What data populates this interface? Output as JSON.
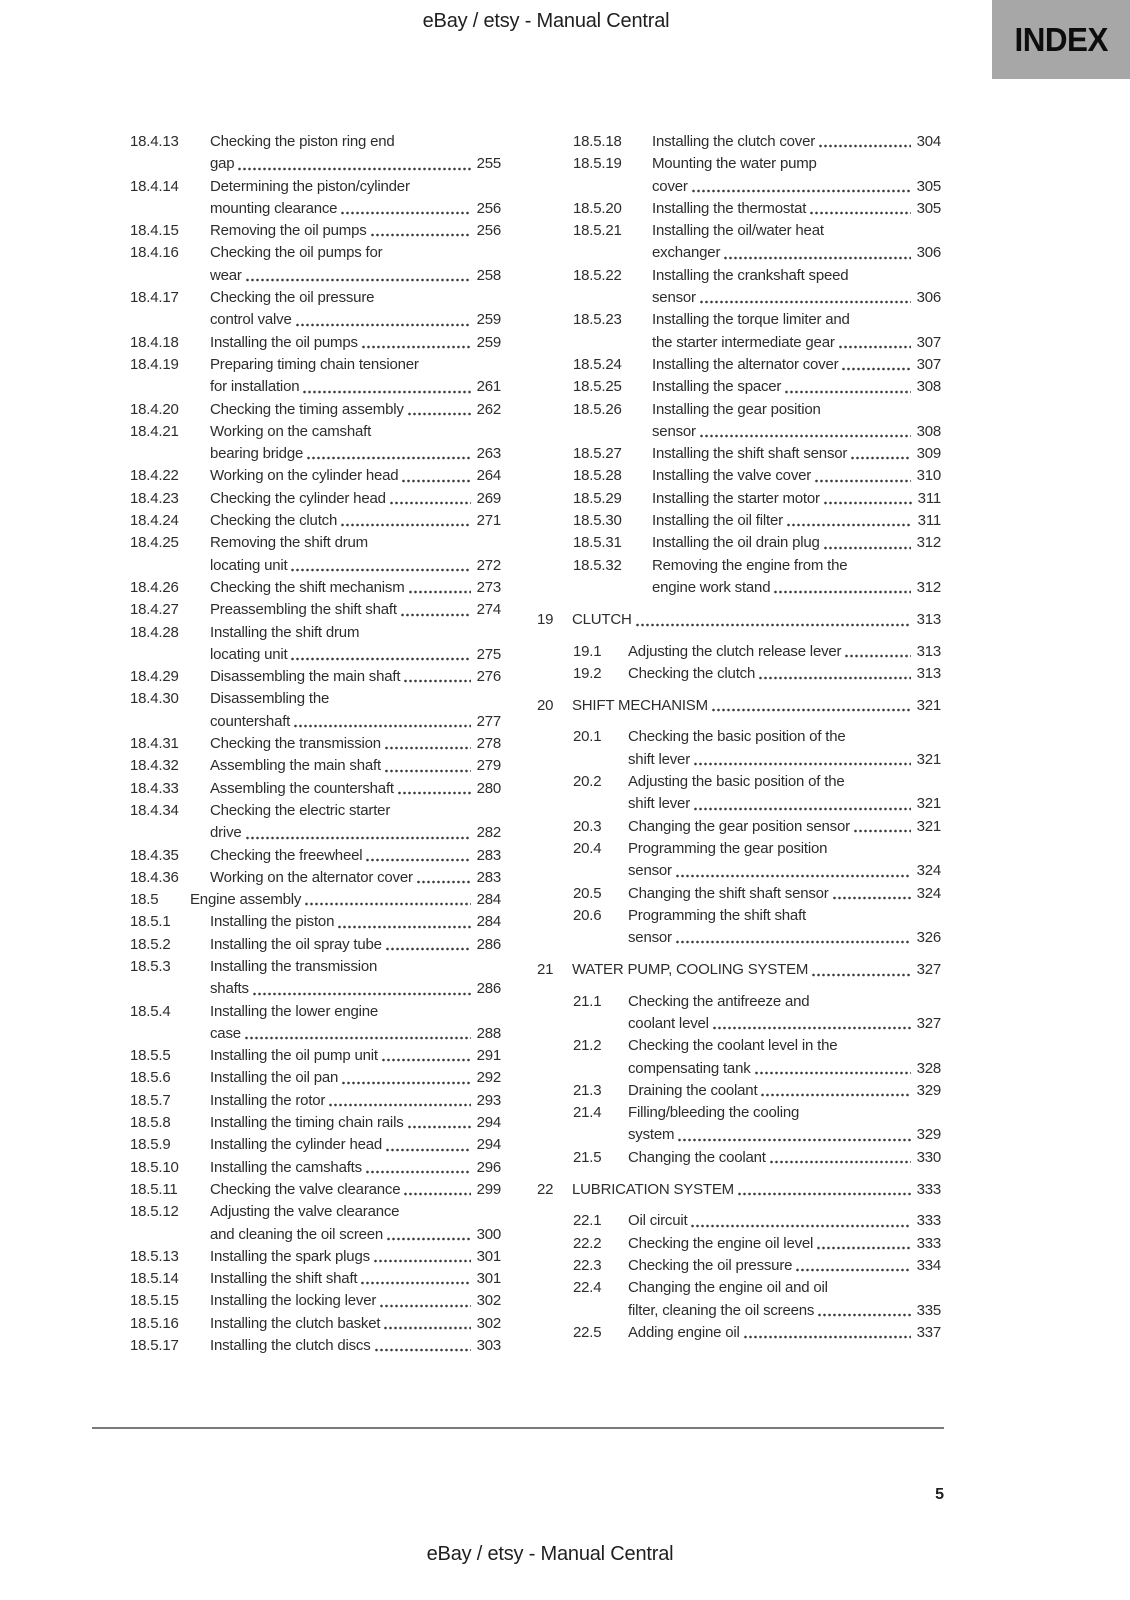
{
  "header": {
    "document_title": "eBay / etsy - Manual Central",
    "index_tab_label": "INDEX"
  },
  "footer": {
    "page_number": "5",
    "document_title": "eBay / etsy - Manual Central"
  },
  "colors": {
    "index_tab_bg": "#a7a7a7",
    "text": "#2d2d2d",
    "rule": "#7b7b7b"
  },
  "toc": {
    "left_column": [
      {
        "num": "18.4.13",
        "level": "sub18",
        "lines": [
          "Checking the piston ring end",
          "gap"
        ],
        "page": "255"
      },
      {
        "num": "18.4.14",
        "level": "sub18",
        "lines": [
          "Determining the piston/cylinder",
          "mounting clearance"
        ],
        "page": "256"
      },
      {
        "num": "18.4.15",
        "level": "sub18",
        "lines": [
          "Removing the oil pumps"
        ],
        "page": "256"
      },
      {
        "num": "18.4.16",
        "level": "sub18",
        "lines": [
          "Checking the oil pumps for",
          "wear"
        ],
        "page": "258"
      },
      {
        "num": "18.4.17",
        "level": "sub18",
        "lines": [
          "Checking the oil pressure",
          "control valve"
        ],
        "page": "259"
      },
      {
        "num": "18.4.18",
        "level": "sub18",
        "lines": [
          "Installing the oil pumps"
        ],
        "page": "259"
      },
      {
        "num": "18.4.19",
        "level": "sub18",
        "lines": [
          "Preparing timing chain tensioner",
          "for installation"
        ],
        "page": "261"
      },
      {
        "num": "18.4.20",
        "level": "sub18",
        "lines": [
          "Checking the timing assembly"
        ],
        "page": "262"
      },
      {
        "num": "18.4.21",
        "level": "sub18",
        "lines": [
          "Working on the camshaft",
          "bearing bridge"
        ],
        "page": "263"
      },
      {
        "num": "18.4.22",
        "level": "sub18",
        "lines": [
          "Working on the cylinder head"
        ],
        "page": "264"
      },
      {
        "num": "18.4.23",
        "level": "sub18",
        "lines": [
          "Checking the cylinder head"
        ],
        "page": "269"
      },
      {
        "num": "18.4.24",
        "level": "sub18",
        "lines": [
          "Checking the clutch"
        ],
        "page": "271"
      },
      {
        "num": "18.4.25",
        "level": "sub18",
        "lines": [
          "Removing the shift drum",
          "locating unit"
        ],
        "page": "272"
      },
      {
        "num": "18.4.26",
        "level": "sub18",
        "lines": [
          "Checking the shift mechanism"
        ],
        "page": "273"
      },
      {
        "num": "18.4.27",
        "level": "sub18",
        "lines": [
          "Preassembling the shift shaft"
        ],
        "page": "274"
      },
      {
        "num": "18.4.28",
        "level": "sub18",
        "lines": [
          "Installing the shift drum",
          "locating unit"
        ],
        "page": "275"
      },
      {
        "num": "18.4.29",
        "level": "sub18",
        "lines": [
          "Disassembling the main shaft"
        ],
        "page": "276"
      },
      {
        "num": "18.4.30",
        "level": "sub18",
        "lines": [
          "Disassembling the",
          "countershaft"
        ],
        "page": "277"
      },
      {
        "num": "18.4.31",
        "level": "sub18",
        "lines": [
          "Checking the transmission"
        ],
        "page": "278"
      },
      {
        "num": "18.4.32",
        "level": "sub18",
        "lines": [
          "Assembling the main shaft"
        ],
        "page": "279"
      },
      {
        "num": "18.4.33",
        "level": "sub18",
        "lines": [
          "Assembling the countershaft"
        ],
        "page": "280"
      },
      {
        "num": "18.4.34",
        "level": "sub18",
        "lines": [
          "Checking the electric starter",
          "drive"
        ],
        "page": "282"
      },
      {
        "num": "18.4.35",
        "level": "sub18",
        "lines": [
          "Checking the freewheel"
        ],
        "page": "283"
      },
      {
        "num": "18.4.36",
        "level": "sub18",
        "lines": [
          "Working on the alternator cover"
        ],
        "page": "283"
      },
      {
        "num": "18.5",
        "level": "sec",
        "lines": [
          "Engine assembly"
        ],
        "page": "284"
      },
      {
        "num": "18.5.1",
        "level": "sub18",
        "lines": [
          "Installing the piston"
        ],
        "page": "284"
      },
      {
        "num": "18.5.2",
        "level": "sub18",
        "lines": [
          "Installing the oil spray tube"
        ],
        "page": "286"
      },
      {
        "num": "18.5.3",
        "level": "sub18",
        "lines": [
          "Installing the transmission",
          "shafts"
        ],
        "page": "286"
      },
      {
        "num": "18.5.4",
        "level": "sub18",
        "lines": [
          "Installing the lower engine",
          "case"
        ],
        "page": "288"
      },
      {
        "num": "18.5.5",
        "level": "sub18",
        "lines": [
          "Installing the oil pump unit"
        ],
        "page": "291"
      },
      {
        "num": "18.5.6",
        "level": "sub18",
        "lines": [
          "Installing the oil pan"
        ],
        "page": "292"
      },
      {
        "num": "18.5.7",
        "level": "sub18",
        "lines": [
          "Installing the rotor"
        ],
        "page": "293"
      },
      {
        "num": "18.5.8",
        "level": "sub18",
        "lines": [
          "Installing the timing chain rails"
        ],
        "page": "294"
      },
      {
        "num": "18.5.9",
        "level": "sub18",
        "lines": [
          "Installing the cylinder head"
        ],
        "page": "294"
      },
      {
        "num": "18.5.10",
        "level": "sub18",
        "lines": [
          "Installing the camshafts"
        ],
        "page": "296"
      },
      {
        "num": "18.5.11",
        "level": "sub18",
        "lines": [
          "Checking the valve clearance"
        ],
        "page": "299"
      },
      {
        "num": "18.5.12",
        "level": "sub18",
        "lines": [
          "Adjusting the valve clearance",
          "and cleaning the oil screen"
        ],
        "page": "300"
      },
      {
        "num": "18.5.13",
        "level": "sub18",
        "lines": [
          "Installing the spark plugs"
        ],
        "page": "301"
      },
      {
        "num": "18.5.14",
        "level": "sub18",
        "lines": [
          "Installing the shift shaft"
        ],
        "page": "301"
      },
      {
        "num": "18.5.15",
        "level": "sub18",
        "lines": [
          "Installing the locking lever"
        ],
        "page": "302"
      },
      {
        "num": "18.5.16",
        "level": "sub18",
        "lines": [
          "Installing the clutch basket"
        ],
        "page": "302"
      },
      {
        "num": "18.5.17",
        "level": "sub18",
        "lines": [
          "Installing the clutch discs"
        ],
        "page": "303"
      }
    ],
    "right_column": [
      {
        "num": "18.5.18",
        "level": "sub18",
        "lines": [
          "Installing the clutch cover"
        ],
        "page": "304"
      },
      {
        "num": "18.5.19",
        "level": "sub18",
        "lines": [
          "Mounting the water pump",
          "cover"
        ],
        "page": "305"
      },
      {
        "num": "18.5.20",
        "level": "sub18",
        "lines": [
          "Installing the thermostat"
        ],
        "page": "305"
      },
      {
        "num": "18.5.21",
        "level": "sub18",
        "lines": [
          "Installing the oil/water heat",
          "exchanger"
        ],
        "page": "306"
      },
      {
        "num": "18.5.22",
        "level": "sub18",
        "lines": [
          "Installing the crankshaft speed",
          "sensor"
        ],
        "page": "306"
      },
      {
        "num": "18.5.23",
        "level": "sub18",
        "lines": [
          "Installing the torque limiter and",
          "the starter intermediate gear"
        ],
        "page": "307"
      },
      {
        "num": "18.5.24",
        "level": "sub18",
        "lines": [
          "Installing the alternator cover"
        ],
        "page": "307"
      },
      {
        "num": "18.5.25",
        "level": "sub18",
        "lines": [
          "Installing the spacer"
        ],
        "page": "308"
      },
      {
        "num": "18.5.26",
        "level": "sub18",
        "lines": [
          "Installing the gear position",
          "sensor"
        ],
        "page": "308"
      },
      {
        "num": "18.5.27",
        "level": "sub18",
        "lines": [
          "Installing the shift shaft sensor"
        ],
        "page": "309"
      },
      {
        "num": "18.5.28",
        "level": "sub18",
        "lines": [
          "Installing the valve cover"
        ],
        "page": "310"
      },
      {
        "num": "18.5.29",
        "level": "sub18",
        "lines": [
          "Installing the starter motor"
        ],
        "page": "311"
      },
      {
        "num": "18.5.30",
        "level": "sub18",
        "lines": [
          "Installing the oil filter"
        ],
        "page": "311"
      },
      {
        "num": "18.5.31",
        "level": "sub18",
        "lines": [
          "Installing the oil drain plug"
        ],
        "page": "312"
      },
      {
        "num": "18.5.32",
        "level": "sub18",
        "lines": [
          "Removing the engine from the",
          "engine work stand"
        ],
        "page": "312"
      },
      {
        "num": "19",
        "level": "ch",
        "lines": [
          "CLUTCH"
        ],
        "page": "313"
      },
      {
        "num": "19.1",
        "level": "sub",
        "lines": [
          "Adjusting the clutch release lever"
        ],
        "page": "313"
      },
      {
        "num": "19.2",
        "level": "sub",
        "lines": [
          "Checking the clutch"
        ],
        "page": "313"
      },
      {
        "num": "20",
        "level": "ch",
        "lines": [
          "SHIFT MECHANISM"
        ],
        "page": "321"
      },
      {
        "num": "20.1",
        "level": "sub",
        "lines": [
          "Checking the basic position of the",
          "shift lever"
        ],
        "page": "321"
      },
      {
        "num": "20.2",
        "level": "sub",
        "lines": [
          "Adjusting the basic position of the",
          "shift lever"
        ],
        "page": "321"
      },
      {
        "num": "20.3",
        "level": "sub",
        "lines": [
          "Changing the gear position sensor"
        ],
        "page": "321"
      },
      {
        "num": "20.4",
        "level": "sub",
        "lines": [
          "Programming the gear position",
          "sensor"
        ],
        "page": "324"
      },
      {
        "num": "20.5",
        "level": "sub",
        "lines": [
          "Changing the shift shaft sensor"
        ],
        "page": "324"
      },
      {
        "num": "20.6",
        "level": "sub",
        "lines": [
          "Programming the shift shaft",
          "sensor"
        ],
        "page": "326"
      },
      {
        "num": "21",
        "level": "ch",
        "lines": [
          "WATER PUMP, COOLING SYSTEM"
        ],
        "page": "327"
      },
      {
        "num": "21.1",
        "level": "sub",
        "lines": [
          "Checking the antifreeze and",
          "coolant level"
        ],
        "page": "327"
      },
      {
        "num": "21.2",
        "level": "sub",
        "lines": [
          "Checking the coolant level in the",
          "compensating tank"
        ],
        "page": "328"
      },
      {
        "num": "21.3",
        "level": "sub",
        "lines": [
          "Draining the coolant"
        ],
        "page": "329"
      },
      {
        "num": "21.4",
        "level": "sub",
        "lines": [
          "Filling/bleeding the cooling",
          "system"
        ],
        "page": "329"
      },
      {
        "num": "21.5",
        "level": "sub",
        "lines": [
          "Changing the coolant"
        ],
        "page": "330"
      },
      {
        "num": "22",
        "level": "ch",
        "lines": [
          "LUBRICATION SYSTEM"
        ],
        "page": "333"
      },
      {
        "num": "22.1",
        "level": "sub",
        "lines": [
          "Oil circuit"
        ],
        "page": "333"
      },
      {
        "num": "22.2",
        "level": "sub",
        "lines": [
          "Checking the engine oil level"
        ],
        "page": "333"
      },
      {
        "num": "22.3",
        "level": "sub",
        "lines": [
          "Checking the oil pressure"
        ],
        "page": "334"
      },
      {
        "num": "22.4",
        "level": "sub",
        "lines": [
          "Changing the engine oil and oil",
          "filter, cleaning the oil screens"
        ],
        "page": "335"
      },
      {
        "num": "22.5",
        "level": "sub",
        "lines": [
          "Adding engine oil"
        ],
        "page": "337"
      }
    ]
  }
}
